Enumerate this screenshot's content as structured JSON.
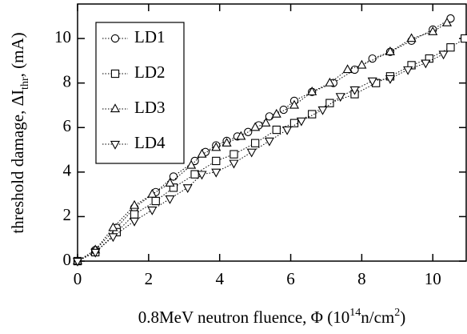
{
  "chart_data": {
    "type": "line",
    "x_label": [
      "0.8MeV neutron fluence, Φ (10",
      "14",
      "n/cm",
      "2",
      ")"
    ],
    "y_label": [
      "threshold damage, ΔI",
      "thr",
      ", (mA)"
    ],
    "xlim": [
      0,
      10.94
    ],
    "ylim": [
      0,
      11.55
    ],
    "xticks": [
      0,
      2,
      4,
      6,
      8,
      10
    ],
    "yticks": [
      0,
      2,
      4,
      6,
      8,
      10
    ],
    "line_style": "dotted",
    "series": [
      {
        "name": "LD1",
        "color": "#000000",
        "marker": "circle",
        "x": [
          0,
          0.5,
          1.1,
          1.6,
          2.2,
          2.7,
          3.3,
          3.6,
          3.9,
          4.2,
          4.5,
          4.8,
          5.1,
          5.4,
          5.8,
          6.1,
          6.6,
          7.2,
          7.8,
          8.3,
          8.8,
          9.4,
          10.0,
          10.5
        ],
        "values": [
          0,
          0.5,
          1.5,
          2.4,
          3.1,
          3.8,
          4.5,
          4.9,
          5.2,
          5.4,
          5.6,
          5.8,
          6.1,
          6.5,
          6.8,
          7.2,
          7.6,
          8.0,
          8.6,
          9.1,
          9.4,
          9.9,
          10.4,
          10.9
        ]
      },
      {
        "name": "LD2",
        "color": "#000000",
        "marker": "square",
        "x": [
          0,
          0.5,
          1.1,
          1.6,
          2.2,
          2.7,
          3.3,
          3.9,
          4.4,
          5.0,
          5.6,
          6.1,
          6.6,
          7.1,
          7.8,
          8.4,
          8.8,
          9.4,
          9.9,
          10.5,
          10.9
        ],
        "values": [
          0,
          0.4,
          1.3,
          2.1,
          2.7,
          3.3,
          3.9,
          4.5,
          4.8,
          5.3,
          5.9,
          6.2,
          6.6,
          7.1,
          7.5,
          8.0,
          8.3,
          8.8,
          9.1,
          9.6,
          10.0
        ]
      },
      {
        "name": "LD3",
        "color": "#000000",
        "marker": "triangle-up",
        "x": [
          0,
          0.5,
          1.0,
          1.6,
          2.1,
          2.6,
          3.2,
          3.5,
          3.9,
          4.2,
          4.6,
          5.0,
          5.3,
          5.6,
          6.1,
          6.6,
          7.1,
          7.6,
          8.0,
          8.8,
          9.4,
          10.0,
          10.4
        ],
        "values": [
          0,
          0.5,
          1.5,
          2.5,
          3.0,
          3.5,
          4.3,
          4.8,
          5.1,
          5.3,
          5.6,
          6.0,
          6.2,
          6.6,
          7.0,
          7.6,
          8.0,
          8.6,
          8.8,
          9.4,
          10.0,
          10.3,
          10.7
        ]
      },
      {
        "name": "LD4",
        "color": "#000000",
        "marker": "triangle-down",
        "x": [
          0,
          0.5,
          1.0,
          1.6,
          2.1,
          2.6,
          3.1,
          3.5,
          3.9,
          4.4,
          4.9,
          5.4,
          5.9,
          6.3,
          6.9,
          7.4,
          7.8,
          8.3,
          8.8,
          9.3,
          9.8,
          10.3
        ],
        "values": [
          0,
          0.4,
          1.1,
          1.8,
          2.3,
          2.8,
          3.3,
          3.9,
          4.0,
          4.4,
          4.9,
          5.4,
          5.9,
          6.3,
          6.8,
          7.4,
          7.7,
          8.1,
          8.2,
          8.6,
          8.9,
          9.3
        ]
      }
    ]
  }
}
